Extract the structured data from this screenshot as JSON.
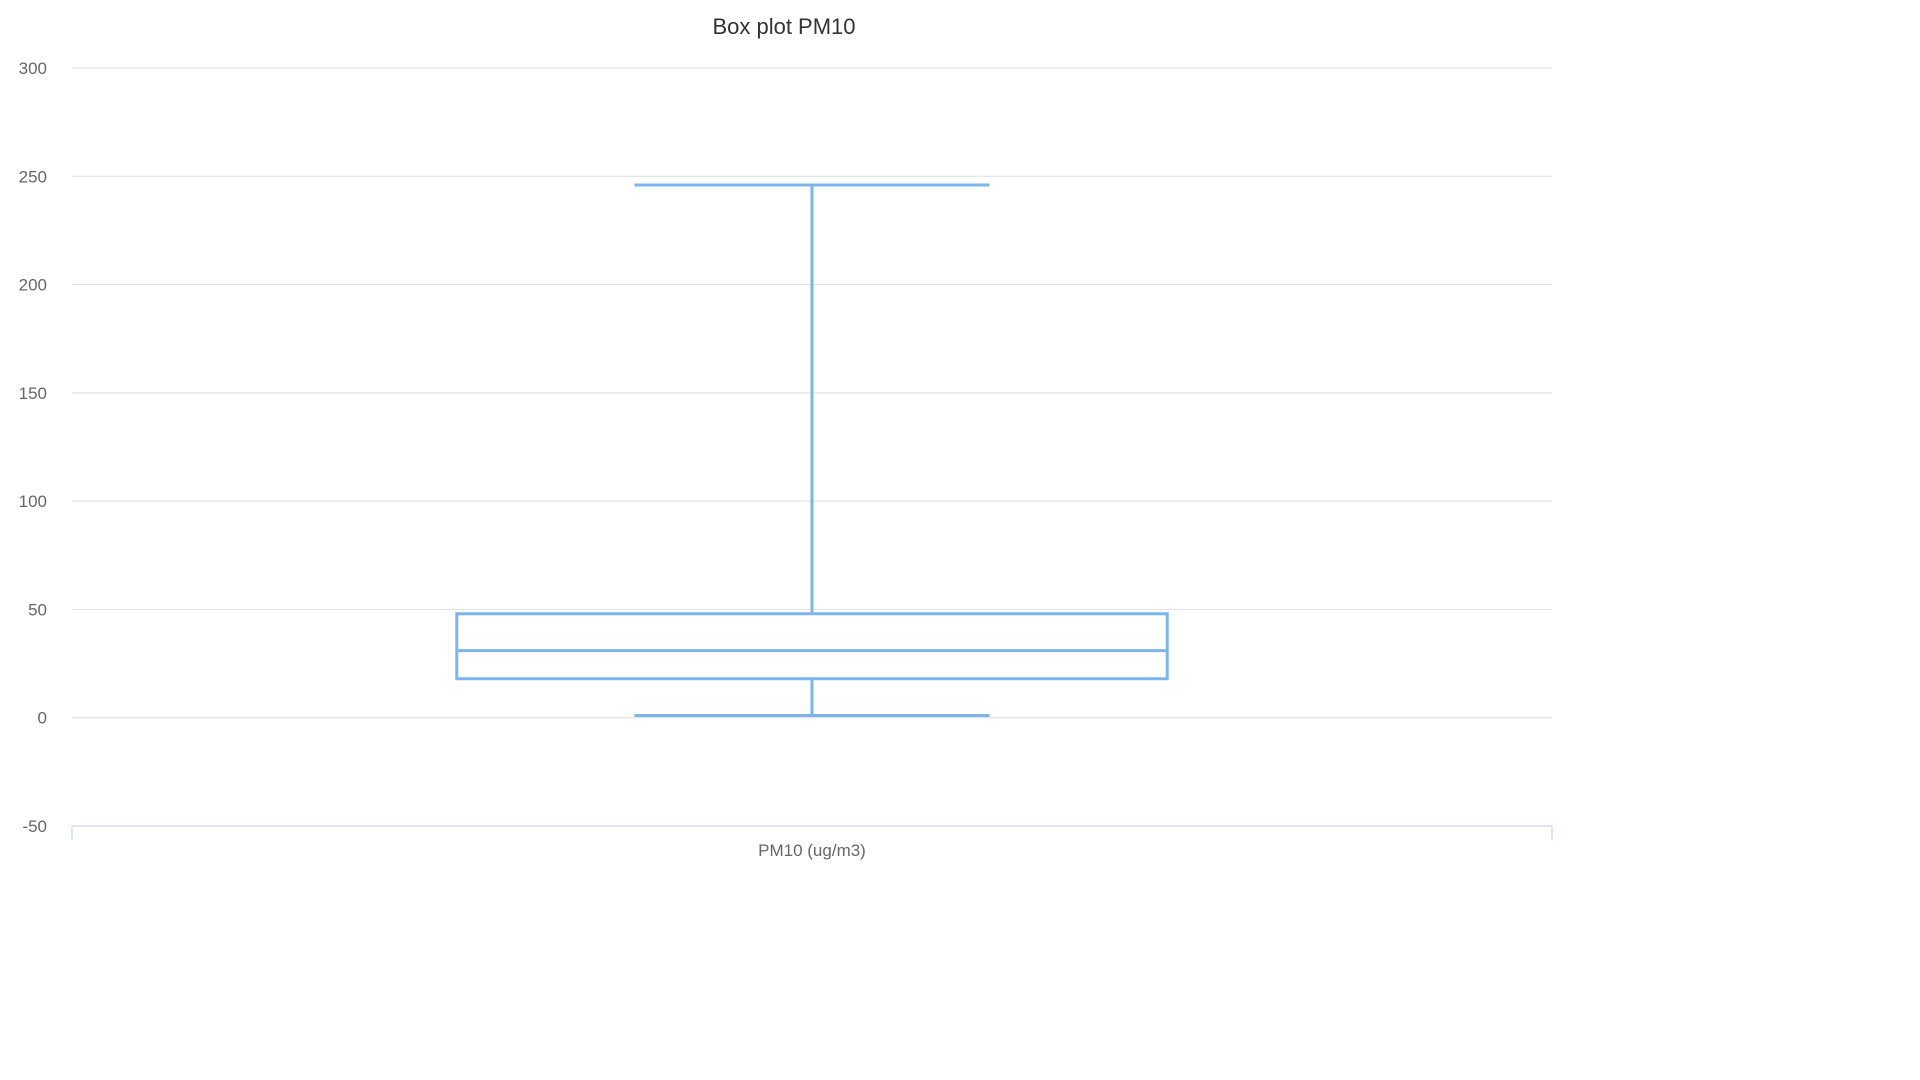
{
  "chart_data": {
    "type": "boxplot",
    "title": "Box plot PM10",
    "xlabel": "",
    "ylabel": "",
    "categories": [
      "PM10 (ug/m3)"
    ],
    "series": [
      {
        "category": "PM10 (ug/m3)",
        "low": 1,
        "q1": 18,
        "median": 31,
        "q3": 48,
        "high": 246
      }
    ],
    "ylim": [
      -50,
      300
    ],
    "yticks": [
      -50,
      0,
      50,
      100,
      150,
      200,
      250,
      300
    ],
    "ytick_labels": [
      "-50",
      "0",
      "50",
      "100",
      "150",
      "200",
      "250",
      "300"
    ],
    "grid": true,
    "legend": "none",
    "colors": {
      "box": "#7cb5ec",
      "grid": "#e3e3e3",
      "axis": "#ccd6eb",
      "title": "#333333",
      "labels": "#666666"
    }
  }
}
